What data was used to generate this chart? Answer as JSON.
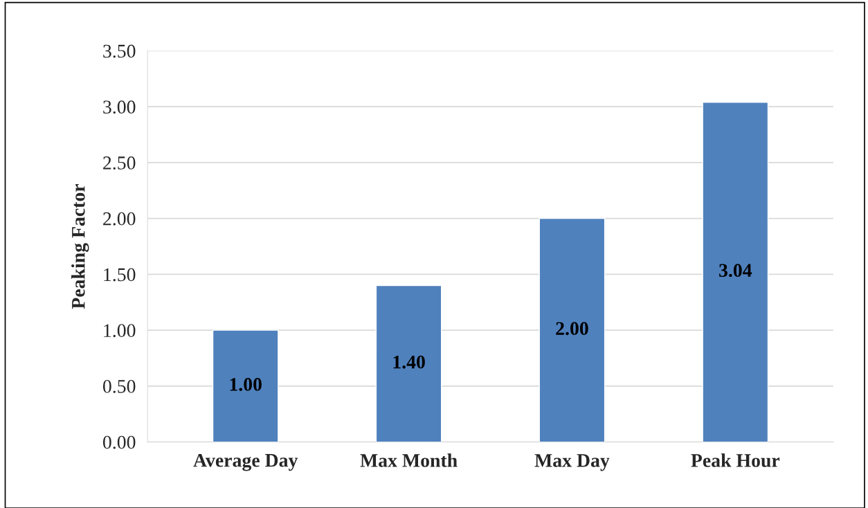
{
  "chart_data": {
    "type": "bar",
    "ylabel": "Peaking Factor",
    "categories": [
      "Average Day",
      "Max Month",
      "Max Day",
      "Peak Hour"
    ],
    "values": [
      1.0,
      1.4,
      2.0,
      3.04
    ],
    "color": "#4f81bd",
    "value_labels": [
      "1.00",
      "1.40",
      "2.00",
      "3.04"
    ],
    "ylim": [
      0,
      3.5
    ],
    "yticks": [
      {
        "value": 0,
        "label": "0.00"
      },
      {
        "value": 0.5,
        "label": "0.50"
      },
      {
        "value": 1,
        "label": "1.00"
      },
      {
        "value": 1.5,
        "label": "1.50"
      },
      {
        "value": 2,
        "label": "2.00"
      },
      {
        "value": 2.5,
        "label": "2.50"
      },
      {
        "value": 3,
        "label": "3.00"
      },
      {
        "value": 3.5,
        "label": "3.50"
      }
    ],
    "grid": "y"
  }
}
